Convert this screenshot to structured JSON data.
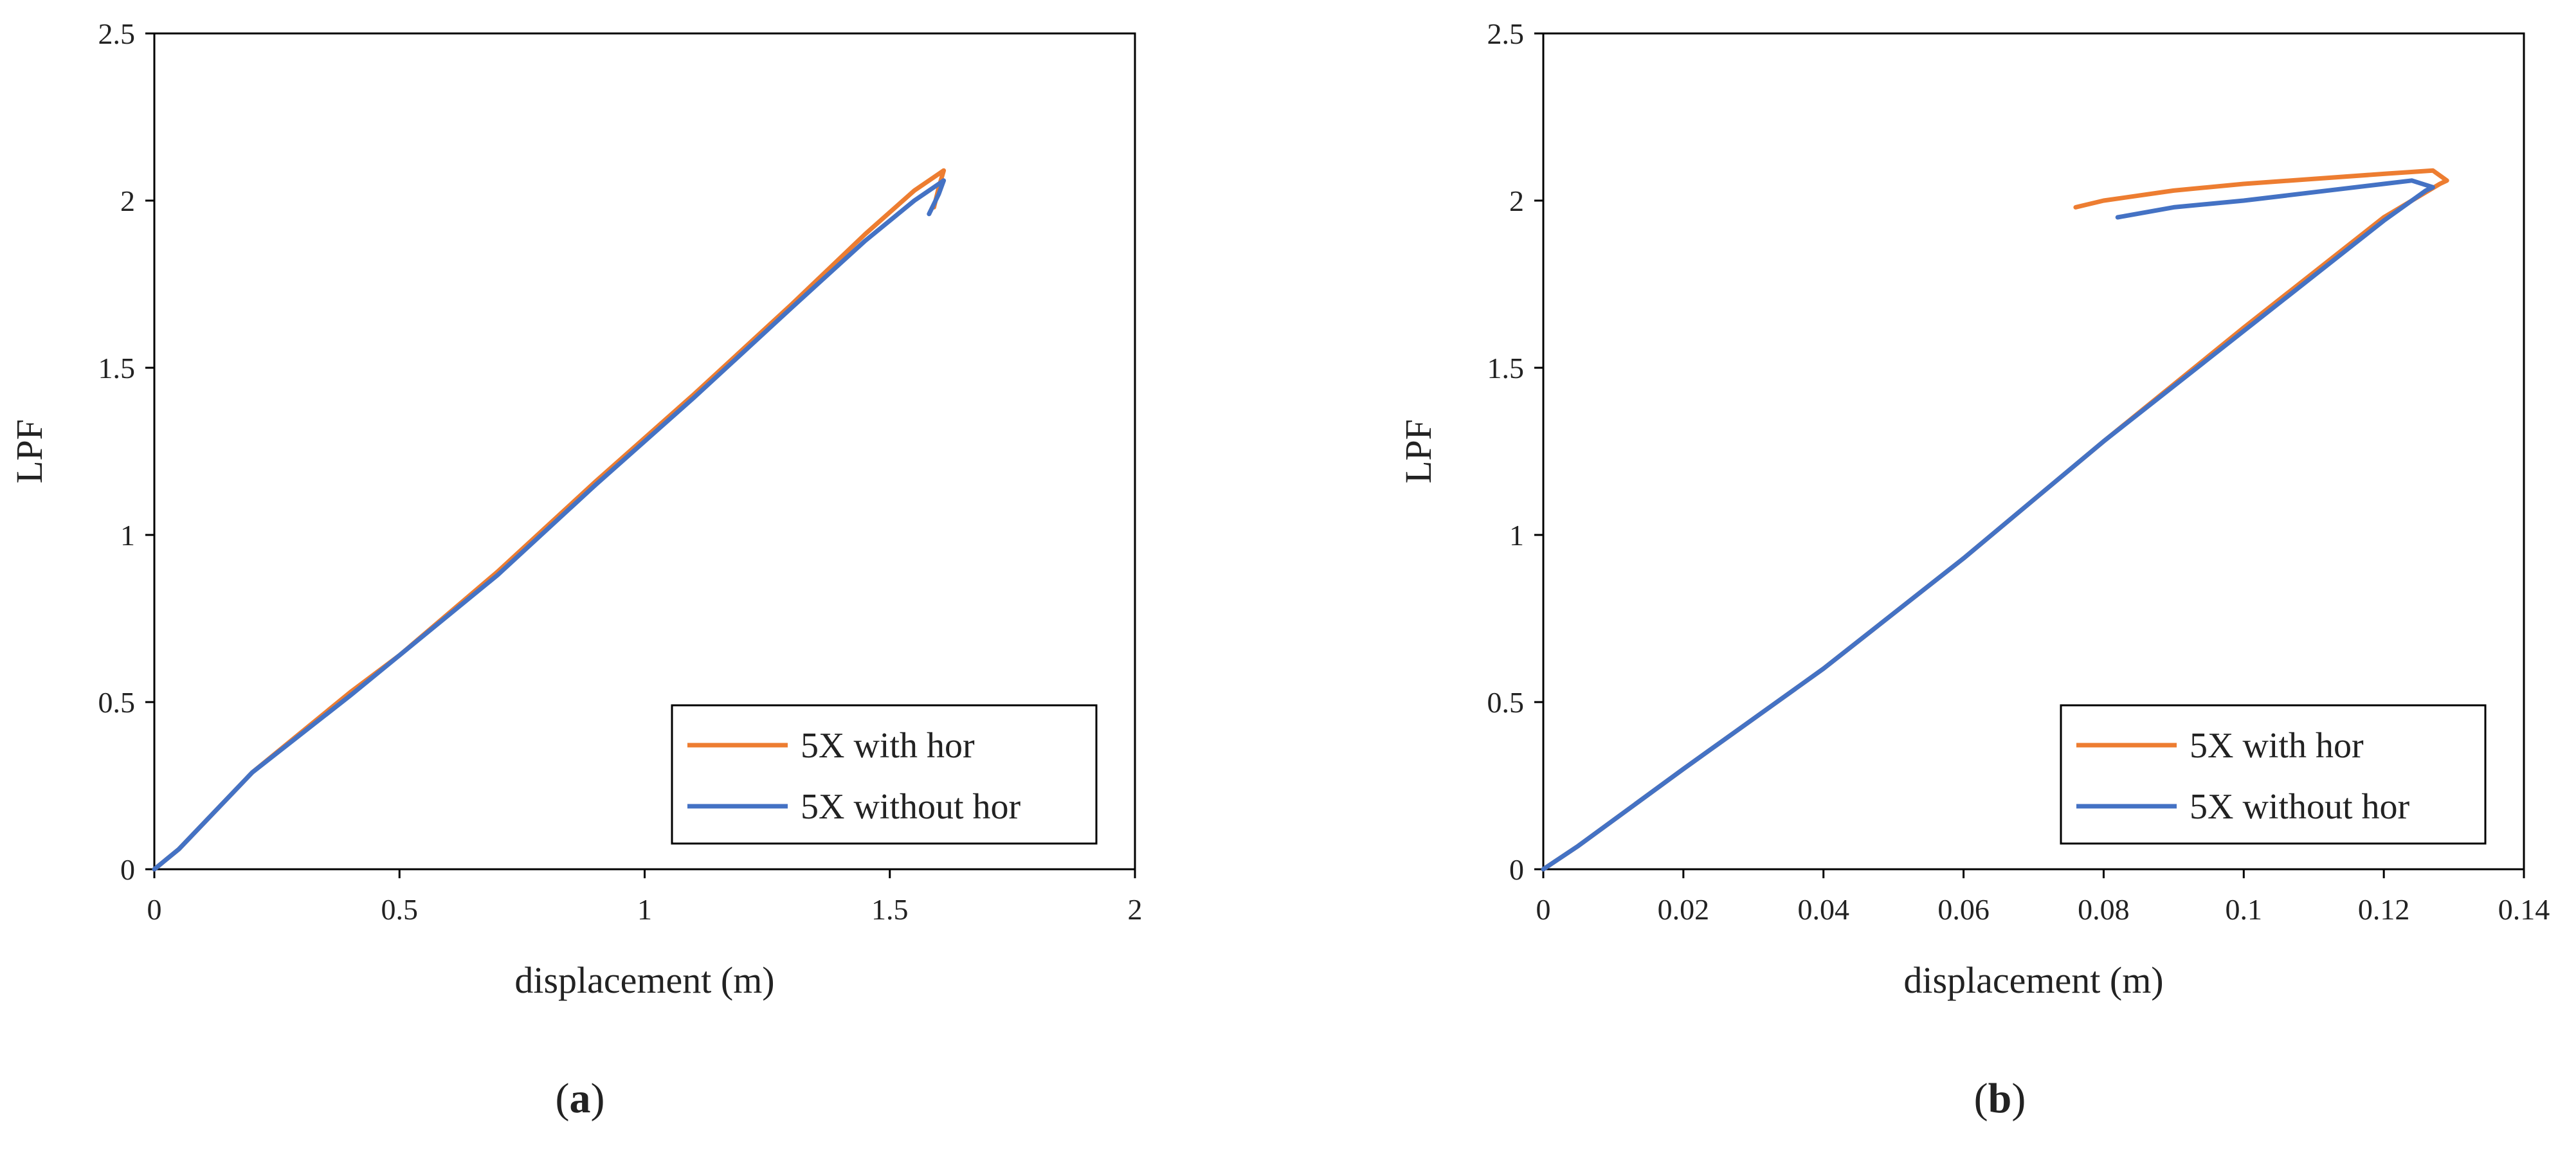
{
  "chart_data": [
    {
      "type": "line",
      "xlabel": "displacement (m)",
      "ylabel": "LPF",
      "xlim": [
        0,
        2
      ],
      "ylim": [
        0,
        2.5
      ],
      "xticks": [
        "0",
        "0.5",
        "1",
        "1.5",
        "2"
      ],
      "yticks": [
        "0",
        "0.5",
        "1",
        "1.5",
        "2",
        "2.5"
      ],
      "grid": false,
      "legend_position": "bottom-right",
      "caption": {
        "open": "(",
        "letter": "a",
        "close": ")"
      },
      "series": [
        {
          "name": "5X with hor",
          "color": "#ed7d31",
          "x": [
            0,
            0.05,
            0.2,
            0.4,
            0.5,
            0.7,
            0.9,
            1.1,
            1.3,
            1.45,
            1.55,
            1.6,
            1.61,
            1.6,
            1.59
          ],
          "y": [
            0,
            0.06,
            0.29,
            0.53,
            0.64,
            0.89,
            1.16,
            1.42,
            1.69,
            1.9,
            2.03,
            2.08,
            2.09,
            2.04,
            1.98
          ]
        },
        {
          "name": "5X without hor",
          "color": "#4472c4",
          "x": [
            0,
            0.05,
            0.2,
            0.4,
            0.5,
            0.7,
            0.9,
            1.1,
            1.3,
            1.45,
            1.55,
            1.6,
            1.61,
            1.6,
            1.58
          ],
          "y": [
            0,
            0.06,
            0.29,
            0.52,
            0.64,
            0.88,
            1.15,
            1.41,
            1.68,
            1.88,
            2.0,
            2.05,
            2.06,
            2.02,
            1.96
          ]
        }
      ]
    },
    {
      "type": "line",
      "xlabel": "displacement (m)",
      "ylabel": "LPF",
      "xlim": [
        0,
        0.14
      ],
      "ylim": [
        0,
        2.5
      ],
      "xticks": [
        "0",
        "0.02",
        "0.04",
        "0.06",
        "0.08",
        "0.1",
        "0.12",
        "0.14"
      ],
      "yticks": [
        "0",
        "0.5",
        "1",
        "1.5",
        "2",
        "2.5"
      ],
      "grid": false,
      "legend_position": "bottom-right",
      "caption": {
        "open": "(",
        "letter": "b",
        "close": ")"
      },
      "series": [
        {
          "name": "5X with hor",
          "color": "#ed7d31",
          "x": [
            0,
            0.005,
            0.02,
            0.04,
            0.06,
            0.08,
            0.1,
            0.12,
            0.128,
            0.129,
            0.127,
            0.12,
            0.1,
            0.09,
            0.08,
            0.076
          ],
          "y": [
            0,
            0.07,
            0.3,
            0.6,
            0.93,
            1.28,
            1.62,
            1.95,
            2.05,
            2.06,
            2.09,
            2.08,
            2.05,
            2.03,
            2.0,
            1.98
          ]
        },
        {
          "name": "5X without hor",
          "color": "#4472c4",
          "x": [
            0,
            0.005,
            0.02,
            0.04,
            0.06,
            0.08,
            0.1,
            0.12,
            0.126,
            0.127,
            0.124,
            0.12,
            0.1,
            0.09,
            0.082
          ],
          "y": [
            0,
            0.07,
            0.3,
            0.6,
            0.93,
            1.28,
            1.61,
            1.94,
            2.03,
            2.04,
            2.06,
            2.05,
            2.0,
            1.98,
            1.95
          ]
        }
      ]
    }
  ]
}
